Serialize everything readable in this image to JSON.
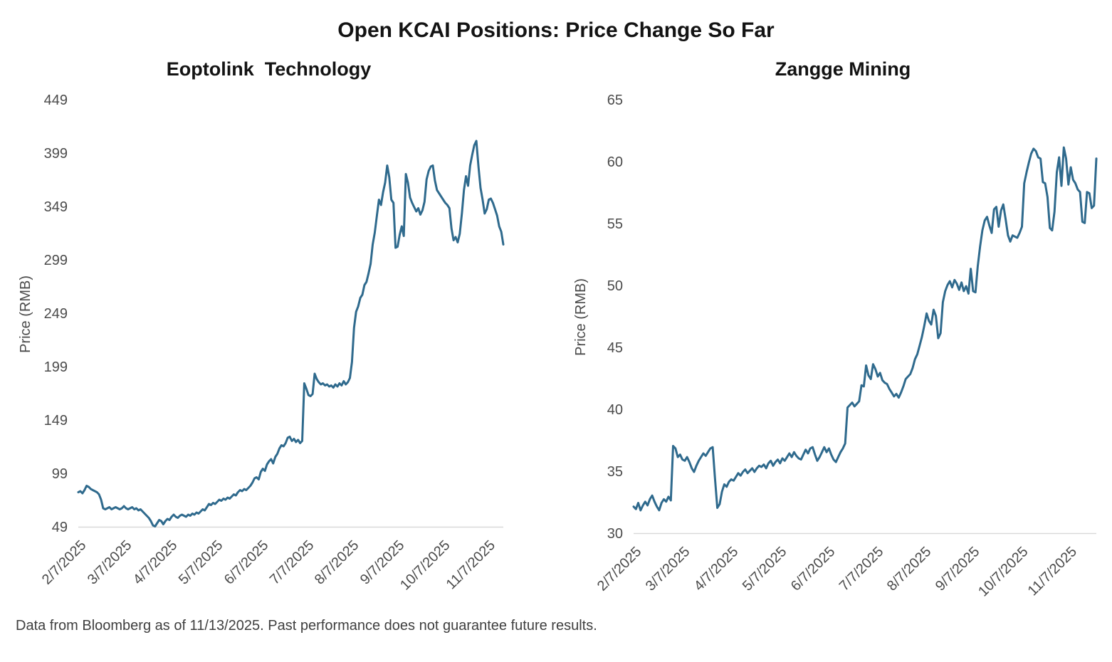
{
  "page": {
    "title": "Open KCAI Positions: Price Change So Far",
    "footnote": "Data from Bloomberg as of 11/13/2025. Past performance does not guarantee future results."
  },
  "chart_data": [
    {
      "type": "line",
      "title": "Eoptolink  Technology",
      "ylabel": "Price (RMB)",
      "ylim": [
        49,
        449
      ],
      "yticks": [
        449,
        399,
        349,
        299,
        249,
        199,
        149,
        99,
        49
      ],
      "xticklabels": [
        "2/7/2025",
        "3/7/2025",
        "4/7/2025",
        "5/7/2025",
        "6/7/2025",
        "7/7/2025",
        "8/7/2025",
        "9/7/2025",
        "10/7/2025",
        "11/7/2025"
      ],
      "xtick_span": 0.963,
      "grid": "bottom baseline only",
      "legend": false,
      "line_color": "#2F6A8D",
      "baseline_color": "#d9d9d9",
      "series": [
        {
          "name": "Eoptolink Technology price (RMB)",
          "values": [
            82,
            83,
            81,
            84,
            88,
            87,
            85,
            84,
            83,
            82,
            80,
            75,
            67,
            66,
            67,
            68,
            66,
            67,
            68,
            67,
            66,
            67,
            69,
            67,
            66,
            67,
            68,
            66,
            67,
            65,
            66,
            64,
            62,
            60,
            58,
            55,
            51,
            50,
            53,
            56,
            55,
            52,
            55,
            57,
            56,
            59,
            61,
            59,
            58,
            60,
            61,
            60,
            59,
            61,
            60,
            62,
            61,
            63,
            62,
            64,
            66,
            65,
            68,
            71,
            70,
            72,
            71,
            73,
            75,
            74,
            76,
            75,
            77,
            76,
            78,
            80,
            79,
            82,
            84,
            83,
            85,
            84,
            86,
            88,
            91,
            95,
            96,
            94,
            101,
            104,
            102,
            108,
            111,
            113,
            109,
            115,
            118,
            123,
            126,
            125,
            128,
            133,
            134,
            130,
            132,
            129,
            131,
            128,
            130,
            184,
            179,
            173,
            172,
            174,
            193,
            188,
            185,
            183,
            184,
            182,
            183,
            181,
            182,
            180,
            183,
            181,
            184,
            182,
            186,
            183,
            185,
            189,
            204,
            236,
            251,
            256,
            264,
            267,
            276,
            279,
            287,
            296,
            314,
            325,
            341,
            356,
            351,
            363,
            372,
            388,
            377,
            356,
            353,
            311,
            312,
            323,
            331,
            322,
            380,
            372,
            358,
            353,
            349,
            345,
            348,
            342,
            346,
            354,
            375,
            383,
            387,
            388,
            374,
            365,
            362,
            359,
            356,
            353,
            351,
            348,
            329,
            318,
            321,
            316,
            324,
            343,
            365,
            378,
            369,
            388,
            398,
            407,
            411,
            387,
            367,
            356,
            343,
            347,
            356,
            357,
            353,
            347,
            341,
            331,
            326,
            314
          ]
        }
      ]
    },
    {
      "type": "line",
      "title": "Zangge Mining",
      "ylabel": "Price (RMB)",
      "ylim": [
        30,
        65
      ],
      "yticks": [
        65,
        60,
        55,
        50,
        45,
        40,
        35,
        30
      ],
      "xticklabels": [
        "2/7/2025",
        "3/7/2025",
        "4/7/2025",
        "5/7/2025",
        "6/7/2025",
        "7/7/2025",
        "8/7/2025",
        "9/7/2025",
        "10/7/2025",
        "11/7/2025"
      ],
      "xtick_span": 0.94,
      "grid": "bottom baseline only",
      "legend": false,
      "line_color": "#2F6A8D",
      "baseline_color": "#d9d9d9",
      "series": [
        {
          "name": "Zangge Mining price (RMB)",
          "values": [
            32.2,
            32.0,
            32.5,
            31.9,
            32.3,
            32.6,
            32.3,
            32.8,
            33.1,
            32.6,
            32.2,
            31.9,
            32.5,
            32.8,
            32.6,
            33.0,
            32.7,
            37.1,
            36.9,
            36.2,
            36.4,
            36.0,
            35.9,
            36.2,
            35.8,
            35.3,
            35.0,
            35.5,
            35.9,
            36.2,
            36.5,
            36.3,
            36.6,
            36.9,
            37.0,
            34.5,
            32.1,
            32.4,
            33.4,
            34.0,
            33.8,
            34.2,
            34.4,
            34.3,
            34.6,
            34.9,
            34.7,
            35.0,
            35.2,
            34.9,
            35.1,
            35.3,
            35.0,
            35.3,
            35.5,
            35.4,
            35.6,
            35.3,
            35.7,
            35.9,
            35.5,
            35.8,
            36.0,
            35.7,
            36.1,
            35.9,
            36.2,
            36.5,
            36.2,
            36.6,
            36.3,
            36.1,
            36.0,
            36.4,
            36.8,
            36.5,
            36.9,
            37.0,
            36.4,
            35.9,
            36.2,
            36.6,
            37.0,
            36.6,
            36.9,
            36.4,
            36.0,
            35.8,
            36.2,
            36.6,
            36.9,
            37.3,
            40.2,
            40.4,
            40.6,
            40.3,
            40.5,
            40.7,
            42.0,
            41.9,
            43.6,
            42.8,
            42.5,
            43.7,
            43.3,
            42.7,
            43.0,
            42.4,
            42.2,
            42.1,
            41.7,
            41.4,
            41.1,
            41.3,
            41.0,
            41.4,
            41.9,
            42.5,
            42.7,
            42.9,
            43.4,
            44.1,
            44.5,
            45.2,
            45.9,
            46.8,
            47.8,
            47.2,
            46.9,
            48.1,
            47.6,
            45.8,
            46.2,
            48.7,
            49.6,
            50.1,
            50.4,
            49.9,
            50.5,
            50.2,
            49.7,
            50.3,
            49.6,
            50.0,
            49.4,
            51.4,
            49.6,
            49.5,
            51.6,
            53.2,
            54.5,
            55.3,
            55.6,
            54.9,
            54.3,
            56.2,
            56.4,
            54.8,
            56.1,
            56.6,
            55.4,
            54.1,
            53.6,
            54.1,
            54.0,
            53.9,
            54.3,
            54.8,
            58.3,
            59.2,
            60.0,
            60.7,
            61.1,
            60.9,
            60.4,
            60.3,
            58.4,
            58.3,
            57.2,
            54.7,
            54.5,
            56.0,
            59.2,
            60.4,
            58.1,
            61.2,
            60.3,
            58.2,
            59.6,
            58.6,
            58.3,
            57.8,
            57.6,
            55.2,
            55.1,
            57.6,
            57.5,
            56.3,
            56.5,
            60.3
          ]
        }
      ]
    }
  ]
}
